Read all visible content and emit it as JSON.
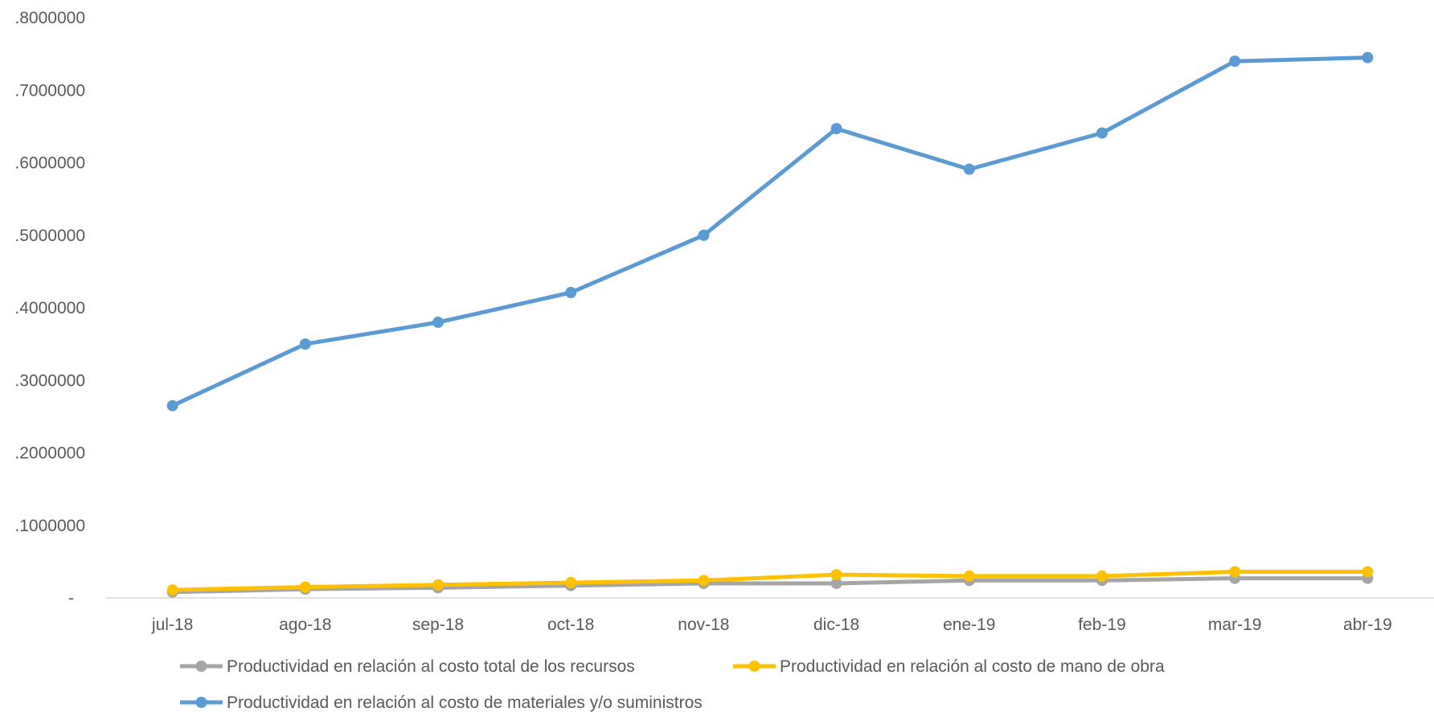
{
  "chart_data": {
    "type": "line",
    "title": "",
    "xlabel": "",
    "ylabel": "",
    "categories": [
      "jul-18",
      "ago-18",
      "sep-18",
      "oct-18",
      "nov-18",
      "dic-18",
      "ene-19",
      "feb-19",
      "mar-19",
      "abr-19"
    ],
    "ylim": [
      0,
      0.8
    ],
    "y_ticks": [
      0,
      0.1,
      0.2,
      0.3,
      0.4,
      0.5,
      0.6,
      0.7,
      0.8
    ],
    "y_tick_labels": [
      "-",
      ".1000000",
      ".2000000",
      ".3000000",
      ".4000000",
      ".5000000",
      ".6000000",
      ".7000000",
      ".8000000"
    ],
    "grid": false,
    "legend_position": "bottom",
    "series": [
      {
        "name": "Productividad en relación al costo total de los recursos",
        "color": "#A5A5A5",
        "values": [
          0.008,
          0.012,
          0.014,
          0.017,
          0.02,
          0.02,
          0.024,
          0.024,
          0.027,
          0.027
        ]
      },
      {
        "name": "Productividad en relación al costo de mano de obra",
        "color": "#FFC000",
        "values": [
          0.011,
          0.015,
          0.018,
          0.021,
          0.024,
          0.032,
          0.03,
          0.03,
          0.036,
          0.036
        ]
      },
      {
        "name": "Productividad en relación al costo de materiales y/o suministros",
        "color": "#5B9BD5",
        "values": [
          0.265,
          0.35,
          0.38,
          0.421,
          0.5,
          0.647,
          0.591,
          0.641,
          0.74,
          0.745
        ]
      }
    ]
  }
}
